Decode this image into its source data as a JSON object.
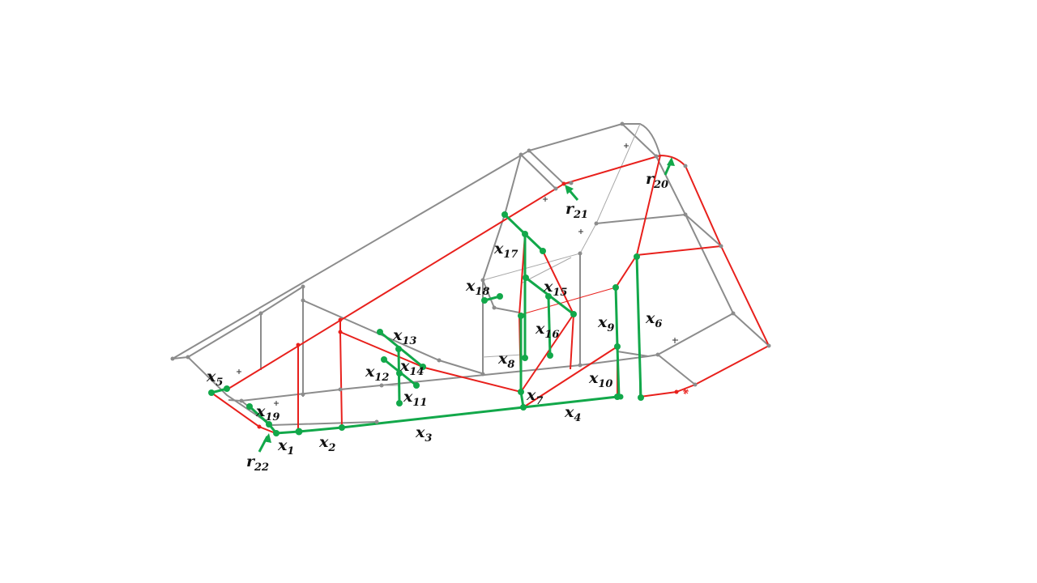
{
  "colors": {
    "frame": "#8c8c8c",
    "highlight": "#e8201c",
    "variable": "#12a84a",
    "label": "#111111"
  },
  "labels": {
    "x1": {
      "base": "x",
      "sub": "1"
    },
    "x2": {
      "base": "x",
      "sub": "2"
    },
    "x3": {
      "base": "x",
      "sub": "3"
    },
    "x4": {
      "base": "x",
      "sub": "4"
    },
    "x5": {
      "base": "x",
      "sub": "5"
    },
    "x6": {
      "base": "x",
      "sub": "6"
    },
    "x7": {
      "base": "x",
      "sub": "7"
    },
    "x8": {
      "base": "x",
      "sub": "8"
    },
    "x9": {
      "base": "x",
      "sub": "9"
    },
    "x10": {
      "base": "x",
      "sub": "10"
    },
    "x11": {
      "base": "x",
      "sub": "11"
    },
    "x12": {
      "base": "x",
      "sub": "12"
    },
    "x13": {
      "base": "x",
      "sub": "13"
    },
    "x14": {
      "base": "x",
      "sub": "14"
    },
    "x15": {
      "base": "x",
      "sub": "15"
    },
    "x16": {
      "base": "x",
      "sub": "16"
    },
    "x17": {
      "base": "x",
      "sub": "17"
    },
    "x18": {
      "base": "x",
      "sub": "18"
    },
    "x19": {
      "base": "x",
      "sub": "19"
    },
    "r20": {
      "base": "r",
      "sub": "20"
    },
    "r21": {
      "base": "r",
      "sub": "21"
    },
    "r22": {
      "base": "r",
      "sub": "22"
    }
  }
}
